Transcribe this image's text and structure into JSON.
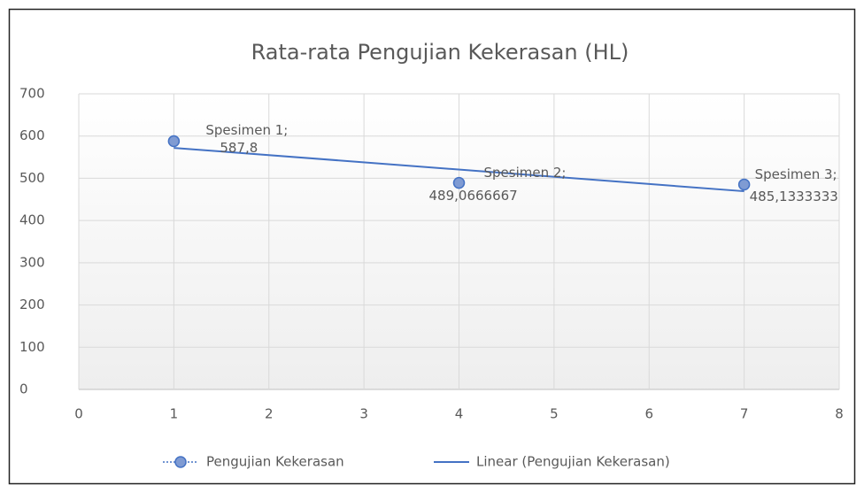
{
  "chart_data": {
    "type": "scatter",
    "title": "Rata-rata Pengujian Kekerasan (HL)",
    "x": [
      1,
      4,
      7
    ],
    "series": [
      {
        "name": "Pengujian Kekerasan",
        "color": "#4472c4",
        "marker_fill": "#7f9bd3",
        "values": [
          587.8,
          489.0666667,
          485.1333333
        ],
        "point_names": [
          "Spesimen 1;",
          "Spesimen 2;",
          "Spesimen 3;"
        ],
        "value_labels": [
          "587,8",
          "489,0666667",
          "485,1333333"
        ],
        "trendline": {
          "type": "linear",
          "name": "Linear (Pengujian Kekerasan)"
        }
      }
    ],
    "xlim": [
      0,
      8
    ],
    "xticks": [
      0,
      1,
      2,
      3,
      4,
      5,
      6,
      7,
      8
    ],
    "ylim": [
      0,
      700
    ],
    "yticks": [
      0,
      100,
      200,
      300,
      400,
      500,
      600,
      700
    ],
    "grid": true,
    "legend": "bottom"
  }
}
